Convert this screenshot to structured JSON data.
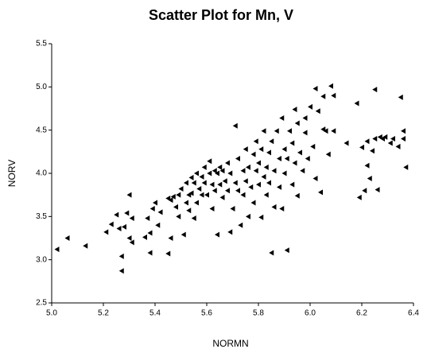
{
  "chart_data": {
    "type": "scatter",
    "title": "Scatter Plot for Mn, V",
    "x_label": "NORMN",
    "y_label": "NORV",
    "color": "#000000",
    "marker": "triangle-left",
    "xlim": [
      5.0,
      6.4
    ],
    "ylim": [
      2.5,
      5.5
    ],
    "xticks": [
      {
        "value": 5.0,
        "label": "5.0"
      },
      5.2,
      5.4,
      5.6,
      5.8,
      {
        "value": 6.0,
        "label": "6.0"
      },
      6.2,
      6.4
    ],
    "yticks": [
      2.5,
      {
        "value": 3.0,
        "label": "3.0"
      },
      3.5,
      {
        "value": 4.0,
        "label": "4.0"
      },
      4.5,
      {
        "value": 5.0,
        "label": "5.0"
      },
      5.5
    ],
    "x": [
      5.02,
      5.06,
      5.13,
      5.21,
      5.23,
      5.25,
      5.26,
      5.27,
      5.27,
      5.28,
      5.29,
      5.3,
      5.3,
      5.31,
      5.31,
      5.36,
      5.37,
      5.38,
      5.38,
      5.39,
      5.4,
      5.41,
      5.42,
      5.45,
      5.45,
      5.46,
      5.46,
      5.47,
      5.48,
      5.49,
      5.49,
      5.5,
      5.51,
      5.52,
      5.52,
      5.53,
      5.53,
      5.54,
      5.54,
      5.55,
      5.55,
      5.56,
      5.56,
      5.57,
      5.58,
      5.58,
      5.59,
      5.59,
      5.6,
      5.61,
      5.61,
      5.62,
      5.62,
      5.63,
      5.63,
      5.64,
      5.64,
      5.65,
      5.65,
      5.66,
      5.66,
      5.67,
      5.68,
      5.68,
      5.69,
      5.69,
      5.7,
      5.71,
      5.71,
      5.72,
      5.72,
      5.73,
      5.74,
      5.74,
      5.75,
      5.75,
      5.76,
      5.76,
      5.77,
      5.78,
      5.78,
      5.79,
      5.79,
      5.8,
      5.8,
      5.81,
      5.81,
      5.82,
      5.82,
      5.83,
      5.83,
      5.84,
      5.84,
      5.85,
      5.85,
      5.86,
      5.86,
      5.87,
      5.88,
      5.88,
      5.89,
      5.89,
      5.9,
      5.9,
      5.91,
      5.91,
      5.92,
      5.93,
      5.93,
      5.94,
      5.94,
      5.95,
      5.95,
      5.96,
      5.97,
      5.98,
      5.98,
      5.99,
      6.0,
      6.01,
      6.02,
      6.02,
      6.03,
      6.04,
      6.05,
      6.05,
      6.06,
      6.07,
      6.08,
      6.09,
      6.09,
      6.14,
      6.18,
      6.19,
      6.2,
      6.21,
      6.22,
      6.22,
      6.23,
      6.24,
      6.25,
      6.25,
      6.26,
      6.27,
      6.28,
      6.29,
      6.31,
      6.32,
      6.34,
      6.35,
      6.36,
      6.37,
      6.36
    ],
    "values": [
      3.12,
      3.25,
      3.16,
      3.32,
      3.41,
      3.52,
      3.36,
      3.04,
      2.87,
      3.38,
      3.54,
      3.25,
      3.75,
      3.48,
      3.2,
      3.26,
      3.48,
      3.08,
      3.31,
      3.59,
      3.66,
      3.4,
      3.55,
      3.07,
      3.71,
      3.25,
      3.69,
      3.73,
      3.61,
      3.75,
      3.5,
      3.82,
      3.29,
      3.66,
      3.89,
      3.57,
      3.75,
      3.95,
      3.77,
      3.48,
      3.89,
      4.0,
      3.66,
      3.82,
      3.96,
      3.75,
      4.07,
      3.89,
      3.75,
      4.0,
      4.14,
      3.87,
      3.59,
      4.03,
      3.8,
      3.29,
      4.0,
      3.87,
      4.07,
      3.72,
      4.03,
      3.91,
      4.12,
      3.8,
      3.32,
      4.0,
      3.59,
      3.89,
      4.55,
      4.17,
      3.8,
      3.4,
      4.03,
      3.75,
      4.28,
      3.91,
      3.5,
      4.07,
      3.84,
      4.22,
      3.66,
      4.03,
      4.37,
      3.87,
      4.12,
      3.49,
      4.28,
      3.96,
      4.49,
      3.75,
      4.07,
      4.24,
      3.89,
      3.08,
      4.37,
      4.03,
      3.61,
      4.49,
      4.17,
      3.84,
      4.64,
      3.59,
      4.28,
      4.0,
      3.11,
      4.17,
      4.49,
      3.87,
      4.35,
      4.12,
      4.74,
      3.74,
      4.58,
      4.24,
      4.03,
      4.47,
      4.64,
      4.17,
      4.77,
      4.31,
      4.98,
      3.94,
      4.72,
      3.78,
      4.51,
      4.89,
      4.49,
      4.22,
      5.01,
      4.49,
      4.9,
      4.35,
      4.81,
      3.72,
      4.3,
      3.8,
      4.09,
      4.37,
      3.94,
      4.26,
      4.97,
      4.4,
      3.81,
      4.42,
      4.4,
      4.42,
      4.35,
      4.4,
      4.31,
      4.88,
      4.4,
      4.07,
      4.49
    ]
  }
}
